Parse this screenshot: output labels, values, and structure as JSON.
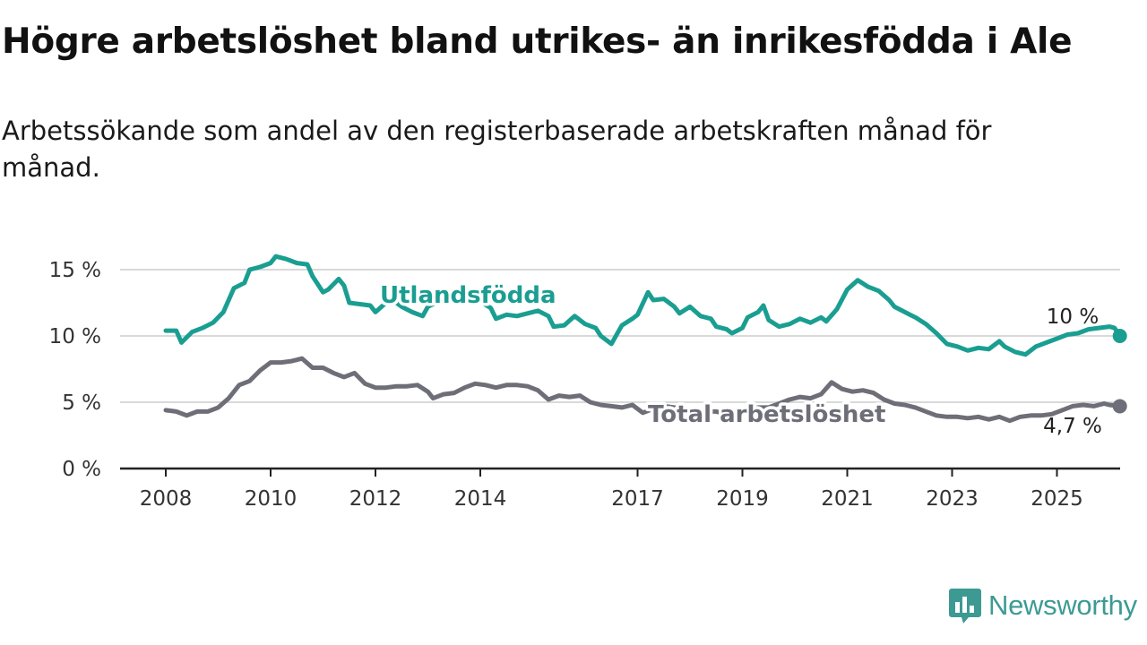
{
  "title": "Högre arbetslöshet bland utrikes- än inrikesfödda i Ale",
  "subtitle": "Arbetssökande som andel av den registerbaserade arbetskraften månad för månad.",
  "brand": {
    "name": "Newsworthy",
    "icon": "newsworthy-logo-icon"
  },
  "colors": {
    "foreign_born": "#1a9e91",
    "total": "#6e6e78",
    "grid": "#d9d9d9",
    "axis": "#222222",
    "brand": "#3d9a93"
  },
  "chart_data": {
    "type": "line",
    "title": "Högre arbetslöshet bland utrikes- än inrikesfödda i Ale",
    "xlabel": "",
    "ylabel": "",
    "xlim": [
      2007.8,
      2026.2
    ],
    "ylim": [
      0,
      17
    ],
    "y_ticks": [
      0,
      5,
      10,
      15
    ],
    "y_tick_labels": [
      "0 %",
      "5 %",
      "10 %",
      "15 %"
    ],
    "x_ticks": [
      2008,
      2010,
      2012,
      2014,
      2017,
      2019,
      2021,
      2023,
      2025
    ],
    "x_tick_labels": [
      "2008",
      "2010",
      "2012",
      "2014",
      "2017",
      "2019",
      "2021",
      "2023",
      "2025"
    ],
    "grid": true,
    "series": [
      {
        "name": "Utlandsfödda",
        "end_label": "10 %",
        "points": [
          [
            2008.0,
            10.4
          ],
          [
            2008.2,
            10.4
          ],
          [
            2008.3,
            9.5
          ],
          [
            2008.5,
            10.3
          ],
          [
            2008.7,
            10.6
          ],
          [
            2008.9,
            11.0
          ],
          [
            2009.1,
            11.8
          ],
          [
            2009.3,
            13.6
          ],
          [
            2009.5,
            14.0
          ],
          [
            2009.6,
            15.0
          ],
          [
            2009.8,
            15.2
          ],
          [
            2010.0,
            15.5
          ],
          [
            2010.1,
            16.0
          ],
          [
            2010.3,
            15.8
          ],
          [
            2010.5,
            15.5
          ],
          [
            2010.7,
            15.4
          ],
          [
            2010.8,
            14.5
          ],
          [
            2011.0,
            13.3
          ],
          [
            2011.1,
            13.5
          ],
          [
            2011.3,
            14.3
          ],
          [
            2011.4,
            13.8
          ],
          [
            2011.5,
            12.5
          ],
          [
            2011.7,
            12.4
          ],
          [
            2011.9,
            12.3
          ],
          [
            2012.0,
            11.8
          ],
          [
            2012.2,
            12.5
          ],
          [
            2012.3,
            12.8
          ],
          [
            2012.5,
            12.2
          ],
          [
            2012.7,
            11.8
          ],
          [
            2012.9,
            11.5
          ],
          [
            2013.0,
            12.2
          ],
          [
            2013.2,
            12.6
          ],
          [
            2013.4,
            12.8
          ],
          [
            2013.6,
            12.5
          ],
          [
            2013.8,
            12.5
          ],
          [
            2014.0,
            12.6
          ],
          [
            2014.2,
            12.1
          ],
          [
            2014.3,
            11.3
          ],
          [
            2014.5,
            11.6
          ],
          [
            2014.7,
            11.5
          ],
          [
            2014.9,
            11.7
          ],
          [
            2015.1,
            11.9
          ],
          [
            2015.3,
            11.5
          ],
          [
            2015.4,
            10.7
          ],
          [
            2015.6,
            10.8
          ],
          [
            2015.8,
            11.5
          ],
          [
            2016.0,
            10.9
          ],
          [
            2016.2,
            10.6
          ],
          [
            2016.3,
            10.0
          ],
          [
            2016.5,
            9.4
          ],
          [
            2016.7,
            10.8
          ],
          [
            2016.9,
            11.3
          ],
          [
            2017.0,
            11.6
          ],
          [
            2017.2,
            13.3
          ],
          [
            2017.3,
            12.7
          ],
          [
            2017.5,
            12.8
          ],
          [
            2017.7,
            12.2
          ],
          [
            2017.8,
            11.7
          ],
          [
            2018.0,
            12.2
          ],
          [
            2018.2,
            11.5
          ],
          [
            2018.4,
            11.3
          ],
          [
            2018.5,
            10.7
          ],
          [
            2018.7,
            10.5
          ],
          [
            2018.8,
            10.2
          ],
          [
            2019.0,
            10.6
          ],
          [
            2019.1,
            11.4
          ],
          [
            2019.3,
            11.8
          ],
          [
            2019.4,
            12.3
          ],
          [
            2019.5,
            11.2
          ],
          [
            2019.7,
            10.7
          ],
          [
            2019.9,
            10.9
          ],
          [
            2020.1,
            11.3
          ],
          [
            2020.3,
            11.0
          ],
          [
            2020.5,
            11.4
          ],
          [
            2020.6,
            11.1
          ],
          [
            2020.8,
            12.0
          ],
          [
            2021.0,
            13.5
          ],
          [
            2021.2,
            14.2
          ],
          [
            2021.4,
            13.7
          ],
          [
            2021.6,
            13.4
          ],
          [
            2021.8,
            12.7
          ],
          [
            2021.9,
            12.2
          ],
          [
            2022.1,
            11.8
          ],
          [
            2022.3,
            11.4
          ],
          [
            2022.5,
            10.9
          ],
          [
            2022.7,
            10.2
          ],
          [
            2022.9,
            9.4
          ],
          [
            2023.1,
            9.2
          ],
          [
            2023.3,
            8.9
          ],
          [
            2023.5,
            9.1
          ],
          [
            2023.7,
            9.0
          ],
          [
            2023.9,
            9.6
          ],
          [
            2024.0,
            9.2
          ],
          [
            2024.2,
            8.8
          ],
          [
            2024.4,
            8.6
          ],
          [
            2024.6,
            9.2
          ],
          [
            2024.8,
            9.5
          ],
          [
            2025.0,
            9.8
          ],
          [
            2025.2,
            10.1
          ],
          [
            2025.4,
            10.2
          ],
          [
            2025.6,
            10.5
          ],
          [
            2025.8,
            10.6
          ],
          [
            2026.0,
            10.7
          ],
          [
            2026.1,
            10.6
          ],
          [
            2026.2,
            10.0
          ]
        ]
      },
      {
        "name": "Total arbetslöshet",
        "end_label": "4,7 %",
        "points": [
          [
            2008.0,
            4.4
          ],
          [
            2008.2,
            4.3
          ],
          [
            2008.4,
            4.0
          ],
          [
            2008.6,
            4.3
          ],
          [
            2008.8,
            4.3
          ],
          [
            2009.0,
            4.6
          ],
          [
            2009.2,
            5.3
          ],
          [
            2009.4,
            6.3
          ],
          [
            2009.6,
            6.6
          ],
          [
            2009.8,
            7.4
          ],
          [
            2010.0,
            8.0
          ],
          [
            2010.2,
            8.0
          ],
          [
            2010.4,
            8.1
          ],
          [
            2010.6,
            8.3
          ],
          [
            2010.8,
            7.6
          ],
          [
            2011.0,
            7.6
          ],
          [
            2011.2,
            7.2
          ],
          [
            2011.4,
            6.9
          ],
          [
            2011.6,
            7.2
          ],
          [
            2011.8,
            6.4
          ],
          [
            2012.0,
            6.1
          ],
          [
            2012.2,
            6.1
          ],
          [
            2012.4,
            6.2
          ],
          [
            2012.6,
            6.2
          ],
          [
            2012.8,
            6.3
          ],
          [
            2013.0,
            5.8
          ],
          [
            2013.1,
            5.3
          ],
          [
            2013.3,
            5.6
          ],
          [
            2013.5,
            5.7
          ],
          [
            2013.7,
            6.1
          ],
          [
            2013.9,
            6.4
          ],
          [
            2014.1,
            6.3
          ],
          [
            2014.3,
            6.1
          ],
          [
            2014.5,
            6.3
          ],
          [
            2014.7,
            6.3
          ],
          [
            2014.9,
            6.2
          ],
          [
            2015.1,
            5.9
          ],
          [
            2015.3,
            5.2
          ],
          [
            2015.5,
            5.5
          ],
          [
            2015.7,
            5.4
          ],
          [
            2015.9,
            5.5
          ],
          [
            2016.1,
            5.0
          ],
          [
            2016.3,
            4.8
          ],
          [
            2016.5,
            4.7
          ],
          [
            2016.7,
            4.6
          ],
          [
            2016.9,
            4.8
          ],
          [
            2017.1,
            4.2
          ],
          [
            2017.3,
            4.5
          ],
          [
            2017.5,
            4.7
          ],
          [
            2017.7,
            4.6
          ],
          [
            2017.9,
            4.5
          ],
          [
            2018.1,
            4.4
          ],
          [
            2018.3,
            4.3
          ],
          [
            2018.5,
            4.3
          ],
          [
            2018.7,
            4.1
          ],
          [
            2018.9,
            4.2
          ],
          [
            2019.1,
            4.4
          ],
          [
            2019.3,
            4.6
          ],
          [
            2019.5,
            4.6
          ],
          [
            2019.7,
            4.9
          ],
          [
            2019.9,
            5.2
          ],
          [
            2020.1,
            5.4
          ],
          [
            2020.3,
            5.3
          ],
          [
            2020.5,
            5.6
          ],
          [
            2020.7,
            6.5
          ],
          [
            2020.9,
            6.0
          ],
          [
            2021.1,
            5.8
          ],
          [
            2021.3,
            5.9
          ],
          [
            2021.5,
            5.7
          ],
          [
            2021.7,
            5.2
          ],
          [
            2021.9,
            4.9
          ],
          [
            2022.1,
            4.8
          ],
          [
            2022.3,
            4.6
          ],
          [
            2022.5,
            4.3
          ],
          [
            2022.7,
            4.0
          ],
          [
            2022.9,
            3.9
          ],
          [
            2023.1,
            3.9
          ],
          [
            2023.3,
            3.8
          ],
          [
            2023.5,
            3.9
          ],
          [
            2023.7,
            3.7
          ],
          [
            2023.9,
            3.9
          ],
          [
            2024.1,
            3.6
          ],
          [
            2024.3,
            3.9
          ],
          [
            2024.5,
            4.0
          ],
          [
            2024.7,
            4.0
          ],
          [
            2024.9,
            4.1
          ],
          [
            2025.1,
            4.4
          ],
          [
            2025.3,
            4.7
          ],
          [
            2025.5,
            4.8
          ],
          [
            2025.7,
            4.7
          ],
          [
            2025.9,
            4.9
          ],
          [
            2026.0,
            4.8
          ],
          [
            2026.2,
            4.7
          ]
        ]
      }
    ]
  }
}
